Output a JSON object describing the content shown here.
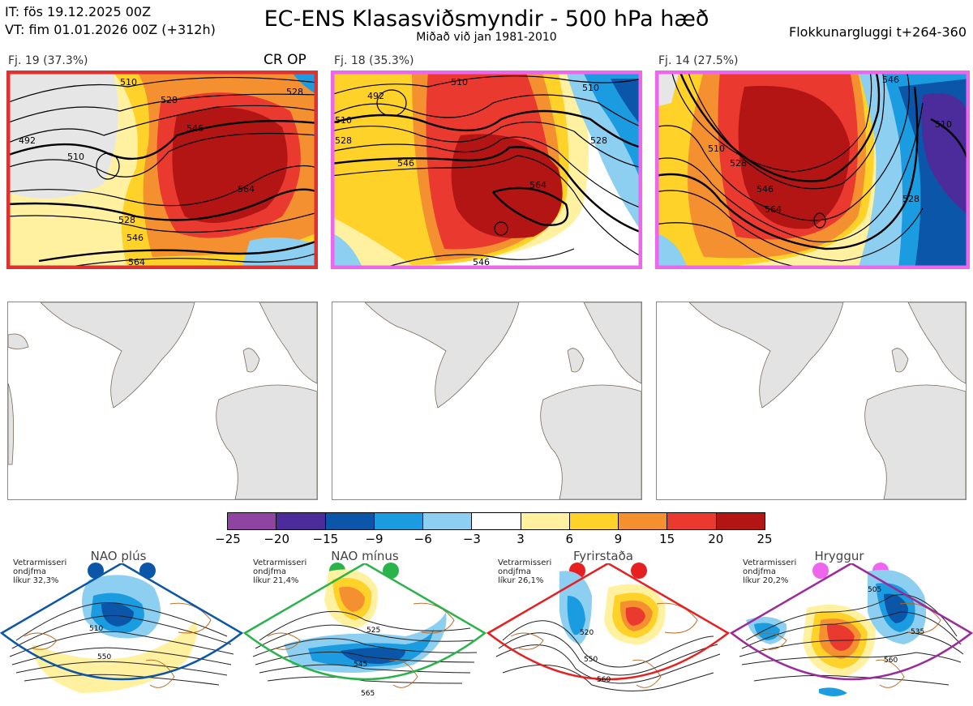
{
  "header": {
    "it_line": "IT: fös 19.12.2025 00Z",
    "vt_line": "VT: fim 01.01.2026 00Z  (+312h)",
    "title": "EC-ENS Klasasviðsmyndir - 500 hPa hæð",
    "subtitle": "Miðað við jan 1981-2010",
    "window": "Flokkunargluggi t+264-360"
  },
  "clusters": [
    {
      "label": "Fj. 19 (37.3%)",
      "border": "#e03030",
      "contours": [
        "510",
        "528",
        "546",
        "564",
        "492",
        "510",
        "528",
        "546",
        "564",
        "528"
      ]
    },
    {
      "label": "Fj. 18 (35.3%)",
      "border": "#ee66ee",
      "contours": [
        "510",
        "492",
        "510",
        "528",
        "546",
        "564",
        "546",
        "510",
        "528"
      ]
    },
    {
      "label": "Fj. 14 (27.5%)",
      "border": "#ee66ee",
      "contours": [
        "510",
        "528",
        "546",
        "564",
        "510",
        "528",
        "546"
      ]
    }
  ],
  "cr_op": "CR OP",
  "colorbar": {
    "colors": [
      "#8e44a0",
      "#4b2c9a",
      "#0b56a8",
      "#1b9be0",
      "#8dcff0",
      "#ffffff",
      "#fff1a0",
      "#ffd22a",
      "#f59030",
      "#ea3a30",
      "#b31515"
    ],
    "labels": [
      "−25",
      "−20",
      "−15",
      "−9",
      "−6",
      "−3",
      "3",
      "6",
      "9",
      "15",
      "20",
      "25"
    ]
  },
  "regimes": [
    {
      "name": "NAO plús",
      "note": [
        "Vetrarmisseri",
        "ondjfma",
        "líkur 32,3%"
      ],
      "color": "#0b56a8",
      "contours": [
        "510",
        "550"
      ]
    },
    {
      "name": "NAO mínus",
      "note": [
        "Vetrarmisseri",
        "ondjfma",
        "líkur 21,4%"
      ],
      "color": "#2ab34a",
      "contours": [
        "525",
        "545",
        "565"
      ]
    },
    {
      "name": "Fyrirstaða",
      "note": [
        "Vetrarmisseri",
        "ondjfma",
        "líkur 26,1%"
      ],
      "color": "#e62020",
      "contours": [
        "520",
        "550",
        "560"
      ]
    },
    {
      "name": "Hryggur",
      "note": [
        "Vetrarmisseri",
        "ondjfma",
        "líkur 20,2%"
      ],
      "color": "#ee66ee",
      "contours": [
        "505",
        "535",
        "560"
      ]
    }
  ]
}
